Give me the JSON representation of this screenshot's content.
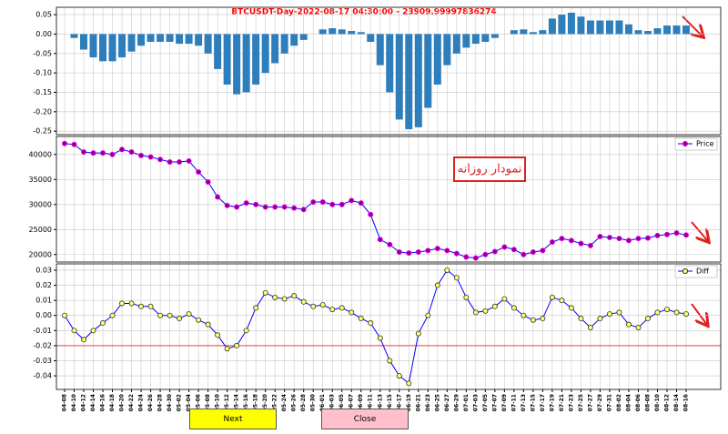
{
  "chart_data": [
    {
      "type": "bar",
      "title": "BTCUSDT-Day-2022-08-17 04:30:00 - 23909.99997836274",
      "color": "#2e7ebc",
      "values": [
        0.0,
        -0.01,
        -0.04,
        -0.06,
        -0.07,
        -0.07,
        -0.06,
        -0.045,
        -0.03,
        -0.02,
        -0.02,
        -0.02,
        -0.025,
        -0.025,
        -0.03,
        -0.05,
        -0.09,
        -0.13,
        -0.155,
        -0.15,
        -0.13,
        -0.1,
        -0.075,
        -0.05,
        -0.03,
        -0.015,
        0.0,
        0.012,
        0.015,
        0.012,
        0.008,
        0.005,
        -0.02,
        -0.08,
        -0.15,
        -0.22,
        -0.245,
        -0.24,
        -0.19,
        -0.13,
        -0.08,
        -0.05,
        -0.035,
        -0.025,
        -0.02,
        -0.01,
        0.0,
        0.01,
        0.012,
        0.005,
        0.01,
        0.04,
        0.05,
        0.055,
        0.045,
        0.035,
        0.035,
        0.035,
        0.035,
        0.025,
        0.01,
        0.008,
        0.015,
        0.022,
        0.022,
        0.022
      ],
      "ylim": [
        -0.259,
        0.069
      ],
      "yticks": [
        0.05,
        {
          "value": 0,
          "label": "0.00"
        },
        -0.05,
        {
          "value": -0.1,
          "label": "-0.10"
        },
        -0.15,
        {
          "value": -0.2,
          "label": "-0.20"
        },
        -0.25
      ],
      "grid": true
    },
    {
      "type": "line",
      "annotation": "نمودار روزانه",
      "series": [
        {
          "name": "Price",
          "color": "#0000ff",
          "marker_color": "#8b008b",
          "marker_edge": "#ff00ff",
          "values": [
            42200,
            42000,
            40500,
            40300,
            40300,
            40000,
            41000,
            40500,
            39800,
            39500,
            39000,
            38500,
            38500,
            38700,
            36500,
            34500,
            31500,
            29800,
            29500,
            30300,
            30000,
            29500,
            29500,
            29500,
            29300,
            29000,
            30500,
            30500,
            30000,
            30000,
            30800,
            30300,
            28000,
            23000,
            22000,
            20500,
            20300,
            20500,
            20800,
            21200,
            20800,
            20200,
            19500,
            19300,
            20000,
            20600,
            21500,
            21000,
            20000,
            20500,
            20800,
            22500,
            23200,
            22800,
            22200,
            21800,
            23600,
            23400,
            23200,
            22800,
            23200,
            23300,
            23800,
            24000,
            24300,
            23900
          ]
        }
      ],
      "ylim": [
        18500,
        43600
      ],
      "yticks": [
        20000,
        25000,
        30000,
        35000,
        40000
      ],
      "grid": true,
      "legend": "upper right"
    },
    {
      "type": "line",
      "categories": [
        "04-08",
        "04-10",
        "04-12",
        "04-14",
        "04-16",
        "04-18",
        "04-20",
        "04-22",
        "04-24",
        "04-26",
        "04-28",
        "04-30",
        "05-02",
        "05-04",
        "05-06",
        "05-08",
        "05-10",
        "05-12",
        "05-14",
        "05-16",
        "05-18",
        "05-20",
        "05-22",
        "05-24",
        "05-26",
        "05-28",
        "05-30",
        "06-01",
        "06-03",
        "06-05",
        "06-07",
        "06-09",
        "06-11",
        "06-13",
        "06-15",
        "06-17",
        "06-19",
        "06-21",
        "06-23",
        "06-25",
        "06-27",
        "06-29",
        "07-01",
        "07-03",
        "07-05",
        "07-07",
        "07-09",
        "07-11",
        "07-13",
        "07-15",
        "07-17",
        "07-19",
        "07-21",
        "07-23",
        "07-25",
        "07-27",
        "07-29",
        "07-31",
        "08-02",
        "08-04",
        "08-06",
        "08-08",
        "08-10",
        "08-12",
        "08-14",
        "08-16"
      ],
      "series": [
        {
          "name": "Diff",
          "color": "#0000ff",
          "marker_color": "#ffff66",
          "marker_edge": "#333333",
          "values": [
            0.0,
            -0.01,
            -0.016,
            -0.01,
            -0.005,
            0.0,
            0.008,
            0.008,
            0.006,
            0.006,
            0.0,
            0.0,
            -0.002,
            0.001,
            -0.003,
            -0.006,
            -0.013,
            -0.022,
            -0.02,
            -0.01,
            0.005,
            0.015,
            0.012,
            0.011,
            0.013,
            0.009,
            0.006,
            0.007,
            0.004,
            0.005,
            0.002,
            -0.002,
            -0.005,
            -0.015,
            -0.03,
            -0.04,
            -0.045,
            -0.012,
            0.0,
            0.02,
            0.03,
            0.025,
            0.012,
            0.002,
            0.003,
            0.006,
            0.011,
            0.005,
            0.0,
            -0.003,
            -0.002,
            0.012,
            0.01,
            0.005,
            -0.002,
            -0.008,
            -0.002,
            0.001,
            0.002,
            -0.006,
            -0.008,
            -0.002,
            0.002,
            0.004,
            0.002,
            0.001
          ]
        }
      ],
      "hline": -0.02,
      "hline_color": "#ff0000",
      "ylim": [
        -0.049,
        0.0342
      ],
      "yticks": [
        0.03,
        0.02,
        0.01,
        {
          "value": 0,
          "label": "0.00"
        },
        -0.01,
        -0.02,
        -0.03,
        -0.04
      ],
      "grid": true,
      "legend": "upper right"
    }
  ],
  "buttons": [
    "Next",
    "Close"
  ]
}
